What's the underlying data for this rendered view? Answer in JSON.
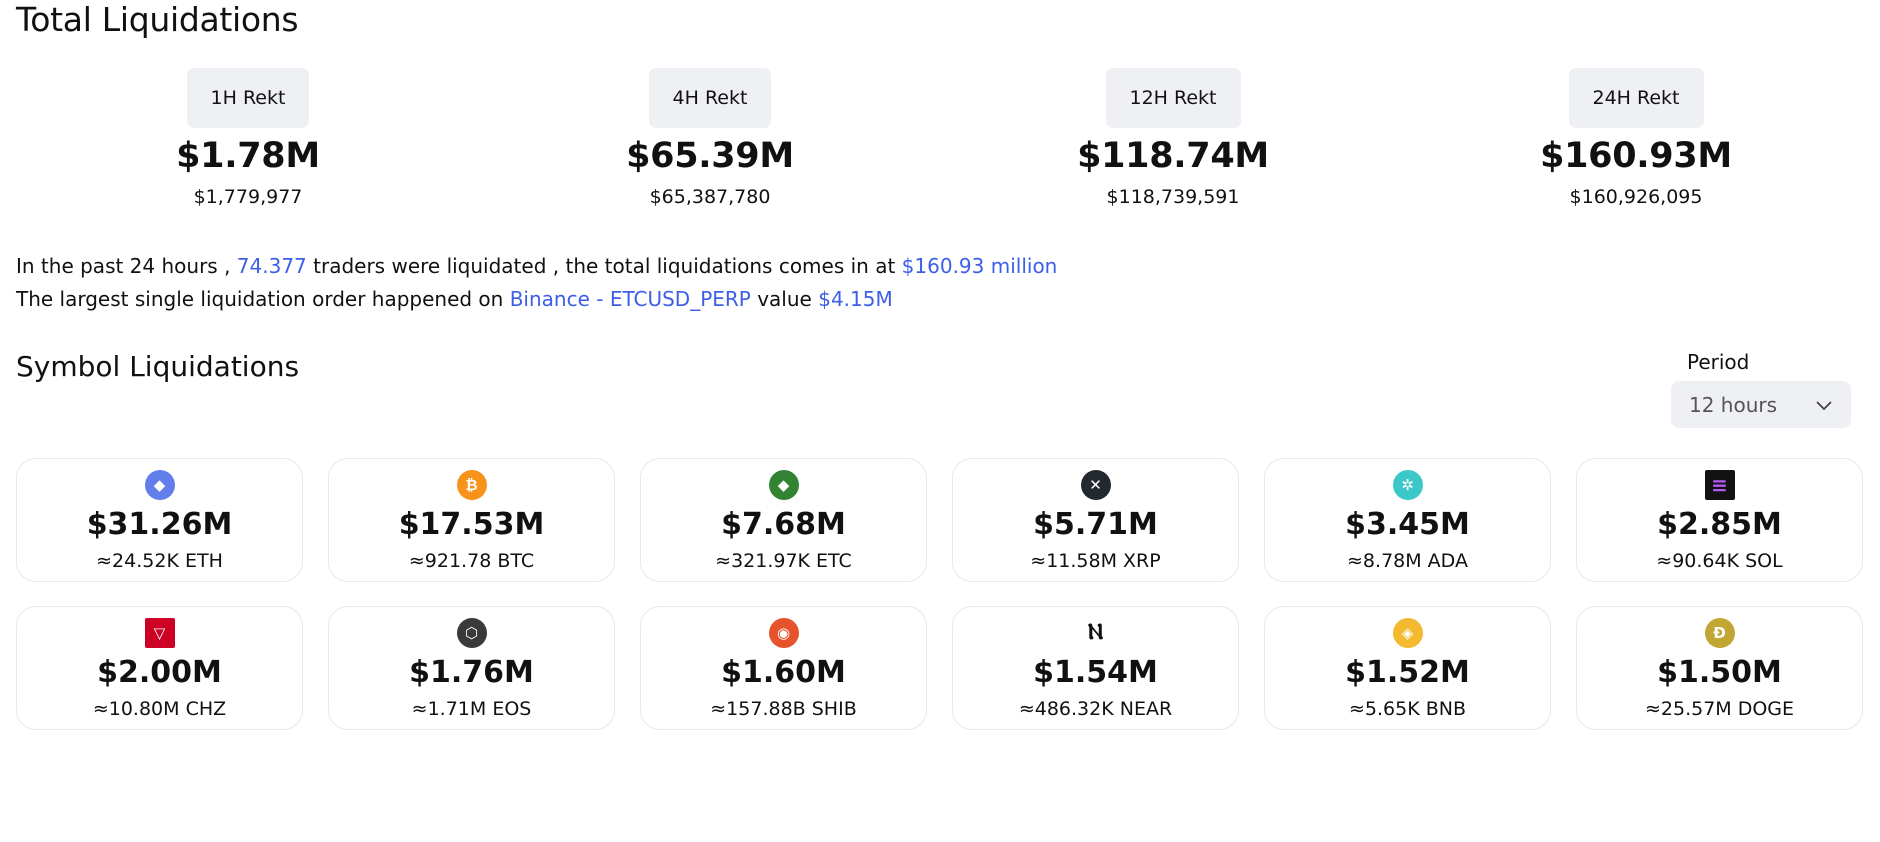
{
  "title": "Total Liquidations",
  "rekt": [
    {
      "label": "1H Rekt",
      "value": "$1.78M",
      "exact": "$1,779,977"
    },
    {
      "label": "4H Rekt",
      "value": "$65.39M",
      "exact": "$65,387,780"
    },
    {
      "label": "12H Rekt",
      "value": "$118.74M",
      "exact": "$118,739,591"
    },
    {
      "label": "24H Rekt",
      "value": "$160.93M",
      "exact": "$160,926,095"
    }
  ],
  "summary": {
    "line1_part1": "In the past 24 hours ,",
    "traders": "74.377",
    "line1_part2": "traders were liquidated , the total liquidations comes in at",
    "total": "$160.93 million",
    "line2_part1": "The largest single liquidation order happened on",
    "exchange_pair": "Binance - ETCUSD_PERP",
    "line2_part2": "value",
    "largest_value": "$4.15M"
  },
  "symbol_section": {
    "title": "Symbol Liquidations",
    "period_label": "Period",
    "period_value": "12 hours"
  },
  "symbols": [
    {
      "icon": "ethereum-icon",
      "glyph": "◆",
      "color": "#627eea",
      "usd": "$31.26M",
      "amount": "≈24.52K ETH"
    },
    {
      "icon": "bitcoin-icon",
      "glyph": "₿",
      "color": "#f7931a",
      "usd": "$17.53M",
      "amount": "≈921.78 BTC"
    },
    {
      "icon": "ethereum-classic-icon",
      "glyph": "◆",
      "color": "#328432",
      "usd": "$7.68M",
      "amount": "≈321.97K ETC"
    },
    {
      "icon": "xrp-icon",
      "glyph": "✕",
      "color": "#23292f",
      "usd": "$5.71M",
      "amount": "≈11.58M XRP"
    },
    {
      "icon": "cardano-icon",
      "glyph": "✲",
      "color": "#3cc8c8",
      "usd": "$3.45M",
      "amount": "≈8.78M ADA"
    },
    {
      "icon": "solana-icon",
      "glyph": "≡",
      "color": "#121212",
      "usd": "$2.85M",
      "amount": "≈90.64K SOL"
    },
    {
      "icon": "chiliz-icon",
      "glyph": "▽",
      "color": "#cd0124",
      "usd": "$2.00M",
      "amount": "≈10.80M CHZ"
    },
    {
      "icon": "eos-icon",
      "glyph": "⬡",
      "color": "#3a3a3a",
      "usd": "$1.76M",
      "amount": "≈1.71M EOS"
    },
    {
      "icon": "shiba-inu-icon",
      "glyph": "◉",
      "color": "#e7542b",
      "usd": "$1.60M",
      "amount": "≈157.88B SHIB"
    },
    {
      "icon": "near-icon",
      "glyph": "Ⲛ",
      "color": "#ffffff",
      "usd": "$1.54M",
      "amount": "≈486.32K NEAR"
    },
    {
      "icon": "bnb-icon",
      "glyph": "◈",
      "color": "#f3ba2f",
      "usd": "$1.52M",
      "amount": "≈5.65K BNB"
    },
    {
      "icon": "dogecoin-icon",
      "glyph": "Ð",
      "color": "#c2a633",
      "usd": "$1.50M",
      "amount": "≈25.57M DOGE"
    }
  ]
}
